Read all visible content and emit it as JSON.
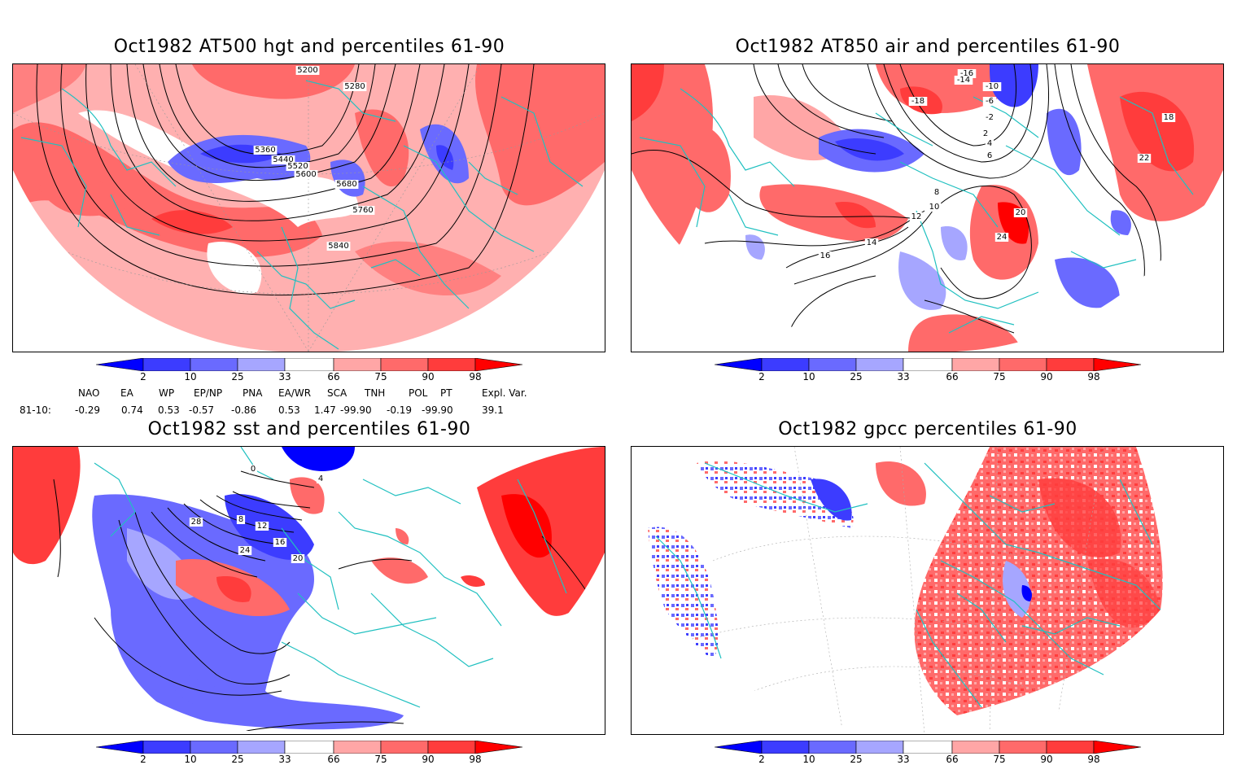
{
  "panels": [
    {
      "id": "hgt",
      "title": "Oct1982 AT500 hgt and percentiles 61-90",
      "contour_labels": [
        "5200",
        "5280",
        "5360",
        "5440",
        "5520",
        "5600",
        "5680",
        "5760",
        "5840"
      ]
    },
    {
      "id": "air",
      "title": "Oct1982 AT850 air and percentiles 61-90",
      "contour_labels": [
        "-16",
        "-14",
        "-18",
        "-10",
        "-6",
        "-2",
        "2",
        "4",
        "6",
        "8",
        "10",
        "12",
        "14",
        "16",
        "18",
        "20",
        "22",
        "24"
      ]
    },
    {
      "id": "sst",
      "title": "Oct1982 sst and percentiles 61-90",
      "contour_labels": [
        "0",
        "4",
        "8",
        "12",
        "16",
        "20",
        "24",
        "28"
      ]
    },
    {
      "id": "gpcc",
      "title": "Oct1982 gpcc percentiles 61-90",
      "contour_labels": []
    }
  ],
  "colorbar": {
    "ticks": [
      "2",
      "10",
      "25",
      "33",
      "66",
      "75",
      "90",
      "98"
    ],
    "colors": [
      "#0000ff",
      "#3c3cff",
      "#6a6aff",
      "#a6a6ff",
      "#ffffff",
      "#ffa6a6",
      "#ff6a6a",
      "#ff3c3c",
      "#ff0000"
    ]
  },
  "indices": {
    "names": [
      "NAO",
      "EA",
      "WP",
      "EP/NP",
      "PNA",
      "EA/WR",
      "SCA",
      "TNH",
      "POL",
      "PT",
      "Expl. Var."
    ],
    "row_label": "81-10:",
    "values": [
      "-0.29",
      "0.74",
      "0.53",
      "-0.57",
      "-0.86",
      "0.53",
      "1.47",
      "-99.90",
      "-0.19",
      "-99.90",
      "39.1"
    ]
  },
  "colors": {
    "coast": "#20c0c0",
    "contour": "#000000",
    "frame": "#000000"
  }
}
